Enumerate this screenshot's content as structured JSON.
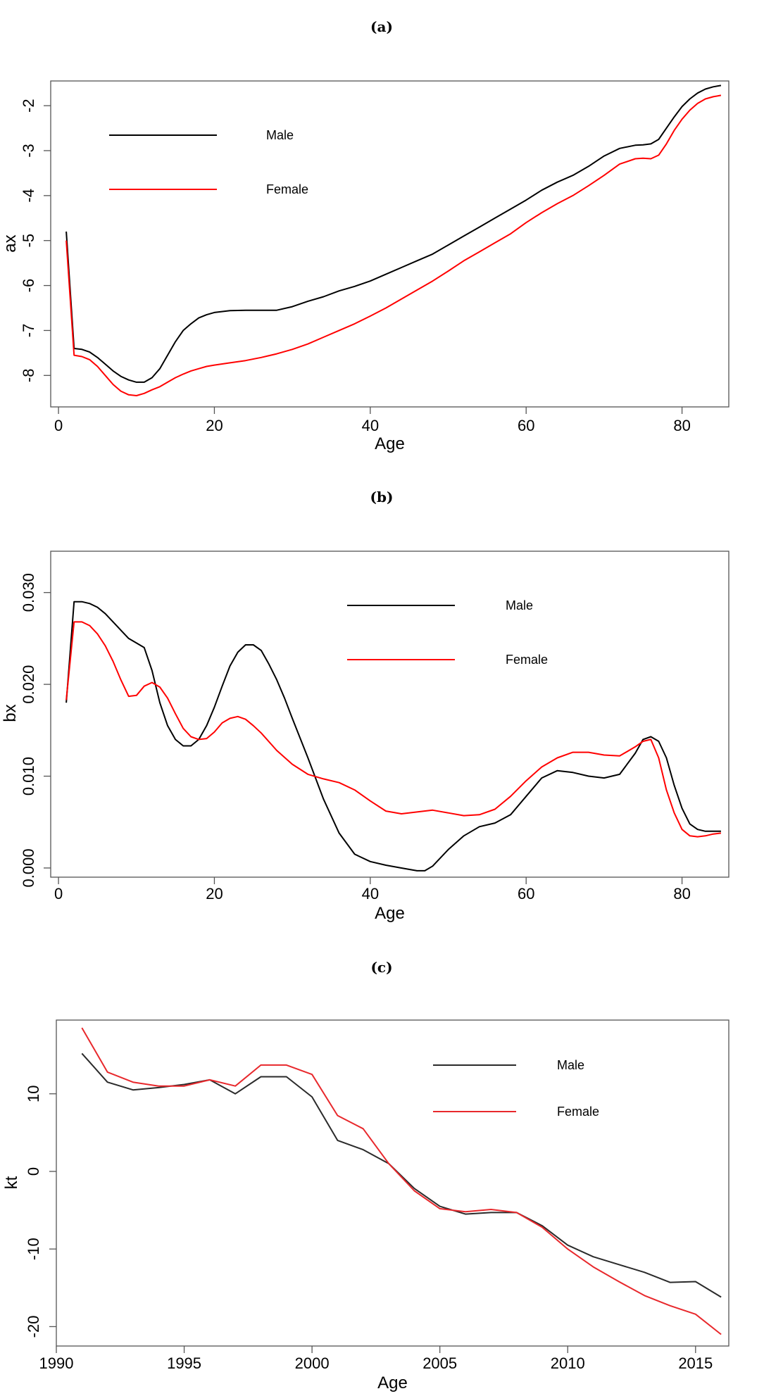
{
  "chart_data": [
    {
      "panel_label": "(a)",
      "type": "line",
      "xlabel": "Age",
      "ylabel": "ax",
      "xlim": [
        -1,
        86
      ],
      "ylim": [
        -8.7,
        -1.45
      ],
      "xticks": [
        0,
        20,
        40,
        60,
        80
      ],
      "yticks": [
        -8,
        -7,
        -6,
        -5,
        -4,
        -3,
        -2
      ],
      "legend": [
        "Male",
        "Female"
      ],
      "series": [
        {
          "name": "Male",
          "color": "#000000",
          "x": [
            1,
            2,
            3,
            4,
            5,
            6,
            7,
            8,
            9,
            10,
            11,
            12,
            13,
            14,
            15,
            16,
            17,
            18,
            19,
            20,
            22,
            24,
            26,
            28,
            30,
            32,
            34,
            36,
            38,
            40,
            42,
            44,
            46,
            48,
            50,
            52,
            54,
            56,
            58,
            60,
            62,
            64,
            66,
            68,
            70,
            72,
            74,
            75,
            76,
            77,
            78,
            79,
            80,
            81,
            82,
            83,
            84,
            85
          ],
          "y": [
            -4.8,
            -7.4,
            -7.42,
            -7.48,
            -7.6,
            -7.75,
            -7.9,
            -8.02,
            -8.1,
            -8.15,
            -8.15,
            -8.05,
            -7.85,
            -7.55,
            -7.25,
            -7.0,
            -6.85,
            -6.72,
            -6.65,
            -6.6,
            -6.56,
            -6.55,
            -6.55,
            -6.55,
            -6.47,
            -6.35,
            -6.25,
            -6.12,
            -6.02,
            -5.9,
            -5.75,
            -5.6,
            -5.45,
            -5.3,
            -5.1,
            -4.9,
            -4.7,
            -4.5,
            -4.3,
            -4.1,
            -3.88,
            -3.7,
            -3.55,
            -3.35,
            -3.12,
            -2.95,
            -2.88,
            -2.87,
            -2.85,
            -2.75,
            -2.5,
            -2.25,
            -2.02,
            -1.85,
            -1.72,
            -1.63,
            -1.58,
            -1.55
          ]
        },
        {
          "name": "Female",
          "color": "#ff0000",
          "x": [
            1,
            2,
            3,
            4,
            5,
            6,
            7,
            8,
            9,
            10,
            11,
            12,
            13,
            14,
            15,
            16,
            17,
            18,
            19,
            20,
            22,
            24,
            26,
            28,
            30,
            32,
            34,
            36,
            38,
            40,
            42,
            44,
            46,
            48,
            50,
            52,
            54,
            56,
            58,
            60,
            62,
            64,
            66,
            68,
            70,
            72,
            74,
            75,
            76,
            77,
            78,
            79,
            80,
            81,
            82,
            83,
            84,
            85
          ],
          "y": [
            -5.0,
            -7.55,
            -7.58,
            -7.65,
            -7.8,
            -8.0,
            -8.2,
            -8.35,
            -8.43,
            -8.45,
            -8.4,
            -8.32,
            -8.25,
            -8.15,
            -8.05,
            -7.97,
            -7.9,
            -7.85,
            -7.8,
            -7.77,
            -7.72,
            -7.67,
            -7.6,
            -7.52,
            -7.42,
            -7.3,
            -7.15,
            -7.0,
            -6.85,
            -6.68,
            -6.5,
            -6.3,
            -6.1,
            -5.9,
            -5.68,
            -5.45,
            -5.25,
            -5.05,
            -4.85,
            -4.6,
            -4.38,
            -4.18,
            -4.0,
            -3.78,
            -3.55,
            -3.3,
            -3.18,
            -3.17,
            -3.18,
            -3.1,
            -2.85,
            -2.55,
            -2.3,
            -2.1,
            -1.95,
            -1.85,
            -1.8,
            -1.77
          ]
        }
      ]
    },
    {
      "panel_label": "(b)",
      "type": "line",
      "xlabel": "Age",
      "ylabel": "bx",
      "xlim": [
        -1,
        86
      ],
      "ylim": [
        -0.001,
        0.0345
      ],
      "xticks": [
        0,
        20,
        40,
        60,
        80
      ],
      "yticks": [
        0.0,
        0.01,
        0.02,
        0.03
      ],
      "ytick_labels": [
        "0.000",
        "0.010",
        "0.020",
        "0.030"
      ],
      "legend": [
        "Male",
        "Female"
      ],
      "series": [
        {
          "name": "Male",
          "color": "#000000",
          "x": [
            1,
            2,
            3,
            4,
            5,
            6,
            7,
            8,
            9,
            10,
            11,
            12,
            13,
            14,
            15,
            16,
            17,
            18,
            19,
            20,
            21,
            22,
            23,
            24,
            25,
            26,
            27,
            28,
            29,
            30,
            32,
            34,
            36,
            38,
            40,
            42,
            44,
            46,
            47,
            48,
            50,
            52,
            54,
            56,
            58,
            60,
            62,
            64,
            66,
            68,
            70,
            72,
            74,
            75,
            76,
            77,
            78,
            79,
            80,
            81,
            82,
            83,
            84,
            85
          ],
          "y": [
            0.018,
            0.029,
            0.029,
            0.0288,
            0.0284,
            0.0277,
            0.0268,
            0.0259,
            0.025,
            0.0245,
            0.024,
            0.0215,
            0.018,
            0.0155,
            0.014,
            0.0133,
            0.0133,
            0.014,
            0.0155,
            0.0175,
            0.0198,
            0.022,
            0.0235,
            0.0243,
            0.0243,
            0.0237,
            0.0222,
            0.0205,
            0.0185,
            0.0163,
            0.012,
            0.0075,
            0.0038,
            0.0015,
            0.0007,
            0.0003,
            0.0,
            -0.0003,
            -0.0003,
            0.0002,
            0.002,
            0.0035,
            0.0045,
            0.0049,
            0.0058,
            0.0078,
            0.0098,
            0.0106,
            0.0104,
            0.01,
            0.0098,
            0.0102,
            0.0125,
            0.014,
            0.0143,
            0.0138,
            0.012,
            0.009,
            0.0065,
            0.0048,
            0.0042,
            0.004,
            0.004,
            0.004
          ]
        },
        {
          "name": "Female",
          "color": "#ff0000",
          "x": [
            1,
            2,
            3,
            4,
            5,
            6,
            7,
            8,
            9,
            10,
            11,
            12,
            13,
            14,
            15,
            16,
            17,
            18,
            19,
            20,
            21,
            22,
            23,
            24,
            25,
            26,
            28,
            30,
            32,
            34,
            36,
            38,
            40,
            42,
            44,
            46,
            48,
            50,
            52,
            54,
            56,
            58,
            60,
            62,
            64,
            66,
            68,
            70,
            72,
            74,
            75,
            76,
            77,
            78,
            79,
            80,
            81,
            82,
            83,
            84,
            85
          ],
          "y": [
            0.0183,
            0.0268,
            0.0268,
            0.0264,
            0.0255,
            0.0242,
            0.0225,
            0.0205,
            0.0187,
            0.0188,
            0.0198,
            0.0202,
            0.0197,
            0.0185,
            0.0168,
            0.0152,
            0.0143,
            0.014,
            0.0141,
            0.0148,
            0.0158,
            0.0163,
            0.0165,
            0.0162,
            0.0155,
            0.0147,
            0.0128,
            0.0113,
            0.0102,
            0.0097,
            0.0093,
            0.0085,
            0.0073,
            0.0062,
            0.0059,
            0.0061,
            0.0063,
            0.006,
            0.0057,
            0.0058,
            0.0064,
            0.0078,
            0.0095,
            0.011,
            0.012,
            0.0126,
            0.0126,
            0.0123,
            0.0122,
            0.0132,
            0.0138,
            0.014,
            0.012,
            0.0085,
            0.006,
            0.0042,
            0.0035,
            0.0034,
            0.0035,
            0.0037,
            0.0038
          ]
        }
      ]
    },
    {
      "panel_label": "(c)",
      "type": "line",
      "xlabel": "Age",
      "ylabel": "kt",
      "xlim": [
        1990,
        2016.3
      ],
      "ylim": [
        -22.5,
        19.5
      ],
      "xticks": [
        1990,
        1995,
        2000,
        2005,
        2010,
        2015
      ],
      "yticks": [
        -20,
        -10,
        0,
        10
      ],
      "legend": [
        "Male",
        "Female"
      ],
      "series": [
        {
          "name": "Male",
          "color": "#2a2a2a",
          "x": [
            1991,
            1992,
            1993,
            1994,
            1995,
            1996,
            1997,
            1998,
            1999,
            2000,
            2001,
            2002,
            2003,
            2004,
            2005,
            2006,
            2007,
            2008,
            2009,
            2010,
            2011,
            2012,
            2013,
            2014,
            2015,
            2016
          ],
          "y": [
            15.2,
            11.5,
            10.5,
            10.8,
            11.2,
            11.8,
            10.0,
            12.2,
            12.2,
            9.6,
            4.0,
            2.8,
            1.0,
            -2.2,
            -4.5,
            -5.5,
            -5.3,
            -5.3,
            -7.0,
            -9.5,
            -11.0,
            -12.0,
            -13.0,
            -14.3,
            -14.2,
            -16.2
          ]
        },
        {
          "name": "Female",
          "color": "#e8282c",
          "x": [
            1991,
            1992,
            1993,
            1994,
            1995,
            1996,
            1997,
            1998,
            1999,
            2000,
            2001,
            2002,
            2003,
            2004,
            2005,
            2006,
            2007,
            2008,
            2009,
            2010,
            2011,
            2012,
            2013,
            2014,
            2015,
            2016
          ],
          "y": [
            18.5,
            12.8,
            11.5,
            11.0,
            11.0,
            11.8,
            11.0,
            13.7,
            13.7,
            12.5,
            7.2,
            5.5,
            1.0,
            -2.5,
            -4.8,
            -5.2,
            -4.9,
            -5.3,
            -7.2,
            -10.0,
            -12.3,
            -14.2,
            -16.0,
            -17.3,
            -18.4,
            -21.0
          ]
        }
      ]
    }
  ]
}
